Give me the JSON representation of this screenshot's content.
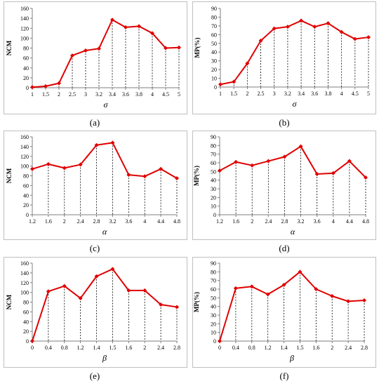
{
  "colors": {
    "series": "#e00000",
    "axis": "#7f7f7f",
    "guide": "#000000"
  },
  "chart_data": [
    {
      "type": "line",
      "panel_label": "(a)",
      "xlabel": "σ",
      "ylabel": "NCM",
      "categories": [
        "1",
        "1.5",
        "2",
        "2.5",
        "3",
        "3.2",
        "3.4",
        "3.6",
        "3.8",
        "4",
        "4.5",
        "5"
      ],
      "values": [
        1,
        3,
        9,
        65,
        75,
        79,
        137,
        122,
        124,
        110,
        80,
        81
      ],
      "ylim": [
        0,
        160
      ],
      "yticks": [
        "0",
        "20",
        "40",
        "60",
        "80",
        "100",
        "120",
        "140",
        "160"
      ],
      "grid": false
    },
    {
      "type": "line",
      "panel_label": "(b)",
      "xlabel": "σ",
      "ylabel": "MP(%)",
      "categories": [
        "1",
        "1.5",
        "2",
        "2.5",
        "3",
        "3.2",
        "3.4",
        "3.6",
        "3.8",
        "4",
        "4.5",
        "5"
      ],
      "values": [
        3,
        6,
        27,
        53,
        67,
        69,
        76,
        69,
        73,
        63,
        55,
        57
      ],
      "ylim": [
        0,
        90
      ],
      "yticks": [
        "0",
        "10",
        "20",
        "30",
        "40",
        "50",
        "60",
        "70",
        "80",
        "90"
      ],
      "grid": false
    },
    {
      "type": "line",
      "panel_label": "(c)",
      "xlabel": "α",
      "ylabel": "NCM",
      "categories": [
        "1.2",
        "1.6",
        "2",
        "2.4",
        "2.8",
        "3.2",
        "3.6",
        "4",
        "4.4",
        "4.8"
      ],
      "values": [
        94,
        104,
        96,
        103,
        143,
        148,
        82,
        79,
        94,
        75
      ],
      "ylim": [
        0,
        160
      ],
      "yticks": [
        "0",
        "20",
        "40",
        "60",
        "80",
        "100",
        "120",
        "140",
        "160"
      ],
      "grid": false
    },
    {
      "type": "line",
      "panel_label": "(d)",
      "xlabel": "α",
      "ylabel": "MP(%)",
      "categories": [
        "1.2",
        "1.6",
        "2",
        "2.4",
        "2.8",
        "3.2",
        "3.6",
        "4",
        "4.4",
        "4.8"
      ],
      "values": [
        51,
        61,
        57,
        62,
        67,
        79,
        47,
        48,
        62,
        43
      ],
      "ylim": [
        0,
        90
      ],
      "yticks": [
        "0",
        "10",
        "20",
        "30",
        "40",
        "50",
        "60",
        "70",
        "80",
        "90"
      ],
      "grid": false
    },
    {
      "type": "line",
      "panel_label": "(e)",
      "xlabel": "β",
      "ylabel": "NCM",
      "categories": [
        "0",
        "0.4",
        "0.8",
        "1.2",
        "1.4",
        "1.5",
        "1.6",
        "2",
        "2.4",
        "2.8"
      ],
      "values": [
        0,
        102,
        113,
        88,
        133,
        148,
        104,
        104,
        75,
        70
      ],
      "ylim": [
        0,
        160
      ],
      "yticks": [
        "0",
        "20",
        "40",
        "60",
        "80",
        "100",
        "120",
        "140",
        "160"
      ],
      "grid": false
    },
    {
      "type": "line",
      "panel_label": "(f)",
      "xlabel": "β",
      "ylabel": "MP(%)",
      "categories": [
        "0",
        "0.4",
        "0.8",
        "1.2",
        "1.4",
        "1.5",
        "1.6",
        "2",
        "2.4",
        "2.8"
      ],
      "values": [
        0,
        61,
        63,
        54,
        65,
        80,
        60,
        52,
        46,
        47
      ],
      "ylim": [
        0,
        90
      ],
      "yticks": [
        "0",
        "10",
        "20",
        "30",
        "40",
        "50",
        "60",
        "70",
        "80",
        "90"
      ],
      "grid": false
    }
  ]
}
